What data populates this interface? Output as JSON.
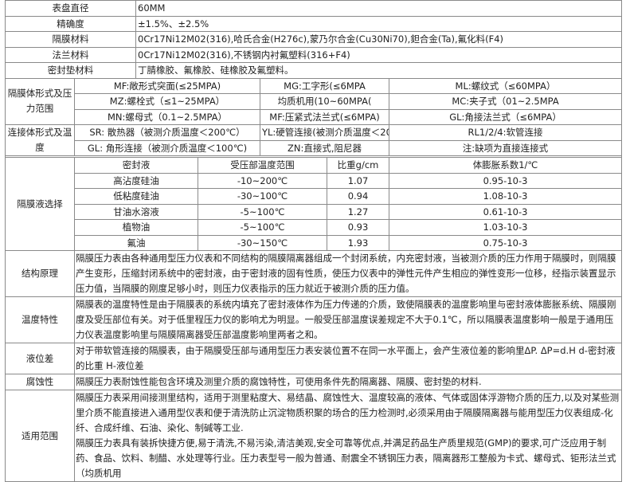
{
  "basic": [
    {
      "label": "表盘直径",
      "value": "60MM"
    },
    {
      "label": "精确度",
      "value": "±1.5%、±2.5%"
    },
    {
      "label": "隔膜材料",
      "value": "0Cr17Ni12M02(316),哈氏合金(H276c),蒙乃尔合金(Cu30Ni70),鉭合金(Ta),氟化料(F4)"
    },
    {
      "label": "法兰材料",
      "value": "0Cr17Ni12M02(316),不锈钢内衬氟塑料(316+F4)"
    },
    {
      "label": "密封垫材料",
      "value": "丁腈橡胶、氟橡胶、硅橡胶及氟塑料。"
    }
  ],
  "diaphragm_forms": {
    "label": "隔膜体形式及压力范围",
    "rows": [
      [
        "MF:敞形式突面(≤25MPA)",
        "MG:工字形(≤6MPA",
        "ML:螺纹式（≤60MPA）"
      ],
      [
        "MZ:螺栓式（≤1~25MPA）",
        "均质机用(10~60MPA(",
        "MC:夹子式（01~2.5MPA"
      ],
      [
        "MN:螺母式（0.1~2.5MPA）",
        "MF:压紧式法兰式(≤6MPA)",
        "GL:角接法兰式（≤6MPA）"
      ]
    ]
  },
  "connection_forms": {
    "label": "连接体形式及温度",
    "rows": [
      [
        "SR: 散热器（被测介质温度＜200℃）",
        "YL:硬管连接(被测介质温度＜200℃)",
        "RL1/2/4:软管连接"
      ],
      [
        "GL: 角形连接（被测介质温度＜100℃)",
        "ZN:直接式,阻尼器",
        "注:缺项为直接连接式"
      ]
    ]
  },
  "fluid_selection": {
    "label": "隔膜液选择",
    "headers": [
      "密封液",
      "受压部温度范围",
      "比重g/cm",
      "体膨胀系数1/℃",
      "用途"
    ],
    "rows": [
      [
        "高沾度硅油",
        "-10~200℃",
        "1.07",
        "0.95-10-3",
        "高温用"
      ],
      [
        "低粘度硅油",
        "-30~100℃",
        "0.94",
        "1.08-10-3",
        "一般用"
      ],
      [
        "甘油水溶液",
        "-5~100℃",
        "1.27",
        "0.61-10-3",
        "食品用"
      ],
      [
        "植物油",
        "-5~100℃",
        "0.93",
        "1.03-10-3",
        "食品用"
      ],
      [
        "氟油",
        "-30~150℃",
        "1.93",
        "0.75-10-3",
        "氢、氧"
      ]
    ]
  },
  "descriptions": [
    {
      "label": "结构原理",
      "text": "隔膜压力表由各种通用型压力仪表和不同结构的隔膜隔离器组成一个封闭系统，内充密封液，当被测介质的压力作用于隔膜时，则隔膜产生变形，压缩封闭系统中的密封液，由于密封液的固有性质，使压力仪表中的弹性元件产生相应的弹性变形一位移，经指示装置显示压力值，当隔膜的刚度足够小时，则压力仪表指示的压力就近于被测介质的压力值。"
    },
    {
      "label": "温度特性",
      "text": "隔膜表的温度特性是由于隔膜表的系统内填充了密封液体作为压力传递的介质，致使隔膜表的温度影响里与密封液体膨胀系统、隔膜刚度及受压部位有关。对于低里程压力仪的影响尤为明显。一般受压部温度误差规定不大于0.1℃，所以隔膜表温度影响一般是于通用压力仪表温度影响里与隔膜隔离器受压部温度影响里两者之和。"
    },
    {
      "label": "液位差",
      "text": "对于带软管连接的隔膜表，由于隔膜受压部与通用型压力表安装位置不在同一水平面上，会产生液位差的影响里ΔP. ΔP=d.H d-密封液的比重 H-液位差"
    },
    {
      "label": "腐蚀性",
      "text": "隔膜压力表耐蚀性能包含环境及测里介质的腐蚀特性，可使用条件先酌隔离器、隔膜、密封垫的材料."
    },
    {
      "label": "适用范围",
      "text": "隔膜压力表采用间接测里结构，适用于测里粘度大、易结晶、腐蚀性大、温度较高的液体、气体或固体浮游物介质的压力,以及对某些测里介质不能直接进入通用型仪表和便于清洗防止沉淀物质积聚的场合的压力检测时,必须采用由于隔膜隔离器与能用型压力仪表组成-化纤、合成纤维、石油、染化、制碱等工业.",
      "text2": "隔膜压力表具有装拆快捷方便,易于清洗,不易污染,清洁美观,安全可靠等优点,并满足药品生产质里规范(GMP)的要求,可广泛应用于制药、食品、饮料、制醋、水处理等行业。压力表型号一般为普通、耐震全不锈钢压力表，隔离器形工整般为卡式、螺母式、钜形法兰式（均质机用"
    }
  ]
}
